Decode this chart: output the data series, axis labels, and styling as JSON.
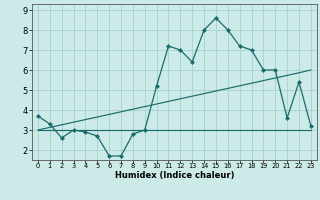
{
  "x": [
    0,
    1,
    2,
    3,
    4,
    5,
    6,
    7,
    8,
    9,
    10,
    11,
    12,
    13,
    14,
    15,
    16,
    17,
    18,
    19,
    20,
    21,
    22,
    23
  ],
  "y_main": [
    3.7,
    3.3,
    2.6,
    3.0,
    2.9,
    2.7,
    1.7,
    1.7,
    2.8,
    3.0,
    5.2,
    7.2,
    7.0,
    6.4,
    8.0,
    8.6,
    8.0,
    7.2,
    7.0,
    6.0,
    6.0,
    3.6,
    5.4,
    3.2
  ],
  "y_diag": [
    3.0,
    3.13,
    3.26,
    3.39,
    3.52,
    3.65,
    3.78,
    3.91,
    4.04,
    4.17,
    4.3,
    4.43,
    4.56,
    4.69,
    4.82,
    4.95,
    5.08,
    5.21,
    5.34,
    5.47,
    5.6,
    5.73,
    5.86,
    6.0
  ],
  "y_flat": [
    3.0,
    3.0,
    3.0,
    3.0,
    3.0,
    3.0,
    3.0,
    3.0,
    3.0,
    3.0,
    3.0,
    3.0,
    3.0,
    3.0,
    3.0,
    3.0,
    3.0,
    3.0,
    3.0,
    3.0,
    3.0,
    3.0,
    3.0,
    3.0
  ],
  "line_color": "#1a6b6b",
  "bg_color": "#cceae8",
  "grid_color": "#aad4d2",
  "xlabel": "Humidex (Indice chaleur)",
  "yticks": [
    2,
    3,
    4,
    5,
    6,
    7,
    8,
    9
  ],
  "xticks": [
    0,
    1,
    2,
    3,
    4,
    5,
    6,
    7,
    8,
    9,
    10,
    11,
    12,
    13,
    14,
    15,
    16,
    17,
    18,
    19,
    20,
    21,
    22,
    23
  ],
  "ylim": [
    1.5,
    9.3
  ],
  "xlim": [
    -0.5,
    23.5
  ]
}
